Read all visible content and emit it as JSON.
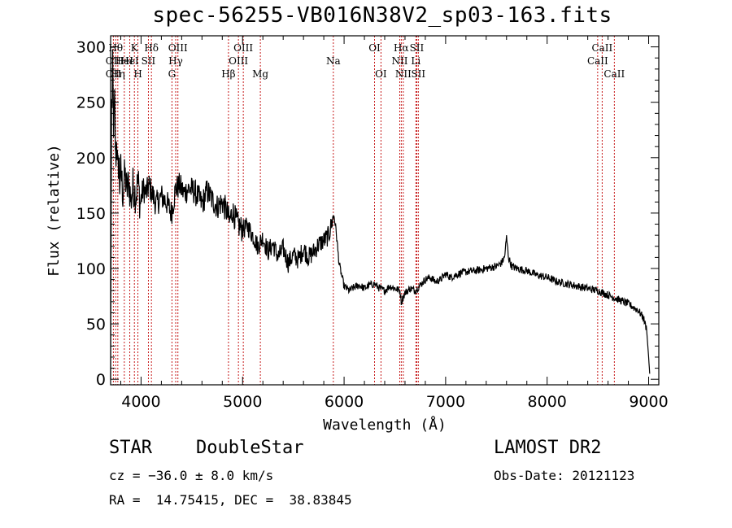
{
  "title": "spec-56255-VB016N38V2_sp03-163.fits",
  "info": {
    "class_label": "STAR",
    "subclass_label": "DoubleStar",
    "survey": "LAMOST DR2",
    "cz": "cz = −36.0 ± 8.0 km/s",
    "obs_date": "Obs-Date: 20121123",
    "radec": "RA =  14.75415, DEC =  38.83845"
  },
  "chart_data": {
    "type": "line",
    "title": "spec-56255-VB016N38V2_sp03-163.fits",
    "xlabel": "Wavelength (Å)",
    "ylabel": "Flux (relative)",
    "xlim": [
      3700,
      9100
    ],
    "ylim": [
      -5,
      310
    ],
    "xticks": [
      4000,
      5000,
      6000,
      7000,
      8000,
      9000
    ],
    "yticks": [
      0,
      50,
      100,
      150,
      200,
      250,
      300
    ],
    "grid": false,
    "series": [
      {
        "color": "#000000",
        "x": [
          3700,
          3705,
          3710,
          3715,
          3720,
          3730,
          3740,
          3750,
          3760,
          3770,
          3780,
          3790,
          3800,
          3820,
          3840,
          3860,
          3880,
          3900,
          3920,
          3950,
          3970,
          3990,
          4020,
          4050,
          4080,
          4100,
          4150,
          4200,
          4250,
          4300,
          4340,
          4380,
          4420,
          4470,
          4520,
          4560,
          4600,
          4650,
          4700,
          4750,
          4800,
          4850,
          4870,
          4900,
          4950,
          5000,
          5050,
          5100,
          5150,
          5200,
          5250,
          5300,
          5350,
          5400,
          5450,
          5500,
          5550,
          5600,
          5650,
          5700,
          5750,
          5800,
          5850,
          5880,
          5900,
          5920,
          5950,
          5980,
          6000,
          6050,
          6100,
          6150,
          6200,
          6250,
          6300,
          6350,
          6400,
          6450,
          6500,
          6550,
          6563,
          6600,
          6650,
          6700,
          6750,
          6800,
          6850,
          6900,
          6950,
          7000,
          7050,
          7100,
          7150,
          7200,
          7300,
          7400,
          7500,
          7550,
          7580,
          7600,
          7620,
          7650,
          7700,
          7800,
          7900,
          8000,
          8100,
          8200,
          8300,
          8400,
          8500,
          8600,
          8700,
          8800,
          8900,
          8950,
          8980,
          9000,
          9010
        ],
        "y": [
          0,
          120,
          260,
          240,
          280,
          230,
          250,
          195,
          220,
          185,
          200,
          175,
          190,
          168,
          185,
          170,
          178,
          160,
          175,
          165,
          180,
          158,
          172,
          168,
          175,
          170,
          158,
          165,
          160,
          150,
          172,
          175,
          168,
          172,
          170,
          165,
          158,
          170,
          162,
          156,
          160,
          150,
          142,
          152,
          140,
          135,
          138,
          130,
          120,
          128,
          115,
          122,
          110,
          118,
          105,
          112,
          108,
          118,
          110,
          115,
          122,
          125,
          130,
          142,
          148,
          135,
          105,
          92,
          84,
          80,
          83,
          85,
          82,
          85,
          86,
          82,
          80,
          84,
          82,
          80,
          70,
          78,
          82,
          80,
          85,
          90,
          92,
          88,
          90,
          95,
          92,
          94,
          96,
          97,
          98,
          100,
          102,
          105,
          110,
          128,
          110,
          102,
          100,
          98,
          94,
          92,
          88,
          86,
          84,
          82,
          80,
          76,
          72,
          68,
          62,
          55,
          45,
          20,
          5
        ]
      }
    ],
    "lines": [
      {
        "wl": 3727,
        "labels": [
          {
            "row": 2,
            "text": "OII"
          },
          {
            "row": 3,
            "text": "OII"
          }
        ]
      },
      {
        "wl": 3750,
        "labels": [
          {
            "row": 1,
            "text": "Hθ"
          }
        ]
      },
      {
        "wl": 3771,
        "labels": [
          {
            "row": 3,
            "text": "Hη"
          }
        ]
      },
      {
        "wl": 3835,
        "labels": [
          {
            "row": 2,
            "text": "HeI"
          }
        ]
      },
      {
        "wl": 3889,
        "labels": [
          {
            "row": 2,
            "text": "HeI"
          }
        ]
      },
      {
        "wl": 3934,
        "labels": [
          {
            "row": 1,
            "text": "K"
          }
        ]
      },
      {
        "wl": 3969,
        "labels": [
          {
            "row": 3,
            "text": "H"
          }
        ]
      },
      {
        "wl": 4072,
        "labels": [
          {
            "row": 2,
            "text": "SII"
          }
        ]
      },
      {
        "wl": 4102,
        "labels": [
          {
            "row": 1,
            "text": "Hδ"
          }
        ]
      },
      {
        "wl": 4304,
        "labels": [
          {
            "row": 3,
            "text": "G"
          }
        ]
      },
      {
        "wl": 4341,
        "labels": [
          {
            "row": 2,
            "text": "Hγ"
          }
        ]
      },
      {
        "wl": 4363,
        "labels": [
          {
            "row": 1,
            "text": "OIII"
          }
        ]
      },
      {
        "wl": 4861,
        "labels": [
          {
            "row": 3,
            "text": "Hβ"
          }
        ]
      },
      {
        "wl": 4959,
        "labels": [
          {
            "row": 2,
            "text": "OIII"
          }
        ]
      },
      {
        "wl": 5007,
        "labels": [
          {
            "row": 1,
            "text": "OIII"
          }
        ]
      },
      {
        "wl": 5175,
        "labels": [
          {
            "row": 3,
            "text": "Mg"
          }
        ]
      },
      {
        "wl": 5894,
        "labels": [
          {
            "row": 2,
            "text": "Na"
          }
        ]
      },
      {
        "wl": 6300,
        "labels": [
          {
            "row": 1,
            "text": "OI"
          }
        ]
      },
      {
        "wl": 6363,
        "labels": [
          {
            "row": 3,
            "text": "OI"
          }
        ]
      },
      {
        "wl": 6548,
        "labels": [
          {
            "row": 2,
            "text": "NII"
          }
        ]
      },
      {
        "wl": 6563,
        "labels": [
          {
            "row": 1,
            "text": "Hα"
          }
        ]
      },
      {
        "wl": 6583,
        "labels": [
          {
            "row": 3,
            "text": "NII"
          }
        ]
      },
      {
        "wl": 6707,
        "labels": [
          {
            "row": 2,
            "text": "Li"
          }
        ]
      },
      {
        "wl": 6716,
        "labels": [
          {
            "row": 1,
            "text": "SII"
          }
        ]
      },
      {
        "wl": 6731,
        "labels": [
          {
            "row": 3,
            "text": "SII"
          }
        ]
      },
      {
        "wl": 8498,
        "labels": [
          {
            "row": 2,
            "text": "CaII"
          }
        ]
      },
      {
        "wl": 8542,
        "labels": [
          {
            "row": 1,
            "text": "CaII"
          }
        ]
      },
      {
        "wl": 8662,
        "labels": [
          {
            "row": 3,
            "text": "CaII"
          }
        ]
      }
    ]
  }
}
